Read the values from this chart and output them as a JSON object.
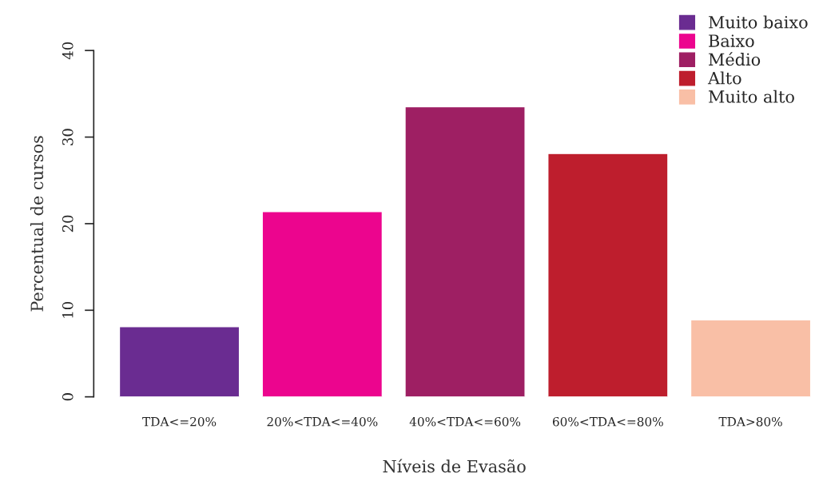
{
  "chart_data": {
    "type": "bar",
    "xlabel": "Níveis de Evasão",
    "ylabel": "Percentual de cursos",
    "categories": [
      "TDA<=20%",
      "20%<TDA<=40%",
      "40%<TDA<=60%",
      "60%<TDA<=80%",
      "TDA>80%"
    ],
    "series": [
      {
        "name": "Muito baixo",
        "color": "#6a2c91",
        "values": [
          8.1,
          null,
          null,
          null,
          null
        ]
      },
      {
        "name": "Baixo",
        "color": "#ec058e",
        "values": [
          null,
          21.4,
          null,
          null,
          null
        ]
      },
      {
        "name": "Médio",
        "color": "#9e1f63",
        "values": [
          null,
          null,
          33.5,
          null,
          null
        ]
      },
      {
        "name": "Alto",
        "color": "#be1e2d",
        "values": [
          null,
          null,
          null,
          28.1,
          null
        ]
      },
      {
        "name": "Muito alto",
        "color": "#f9bfa6",
        "values": [
          null,
          null,
          null,
          null,
          8.9
        ]
      }
    ],
    "ylim": [
      0,
      40
    ],
    "yticks": [
      0,
      10,
      20,
      30,
      40
    ],
    "grid": false,
    "legend": "top right"
  }
}
